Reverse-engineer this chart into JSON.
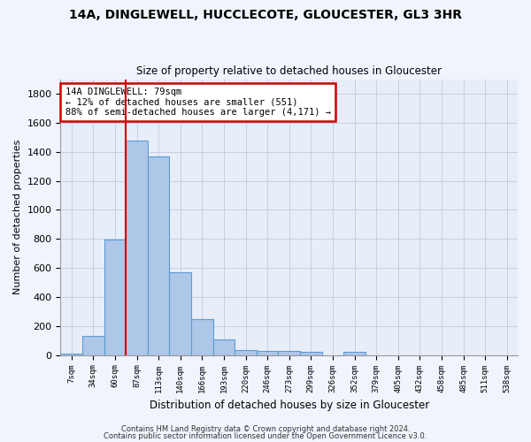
{
  "title1": "14A, DINGLEWELL, HUCCLECOTE, GLOUCESTER, GL3 3HR",
  "title2": "Size of property relative to detached houses in Gloucester",
  "xlabel": "Distribution of detached houses by size in Gloucester",
  "ylabel": "Number of detached properties",
  "categories": [
    "7sqm",
    "34sqm",
    "60sqm",
    "87sqm",
    "113sqm",
    "140sqm",
    "166sqm",
    "193sqm",
    "220sqm",
    "246sqm",
    "273sqm",
    "299sqm",
    "326sqm",
    "352sqm",
    "379sqm",
    "405sqm",
    "432sqm",
    "458sqm",
    "485sqm",
    "511sqm",
    "538sqm"
  ],
  "bar_values": [
    10,
    130,
    795,
    1475,
    1370,
    570,
    250,
    110,
    35,
    30,
    30,
    20,
    0,
    20,
    0,
    0,
    0,
    0,
    0,
    0,
    0
  ],
  "bar_color": "#aec6e8",
  "bar_edge_color": "#5b9bd5",
  "annotation_text": "14A DINGLEWELL: 79sqm\n← 12% of detached houses are smaller (551)\n88% of semi-detached houses are larger (4,171) →",
  "annotation_box_color": "#ffffff",
  "annotation_box_edge_color": "#cc0000",
  "vline_color": "#cc0000",
  "vline_x": 2.5,
  "ylim": [
    0,
    1900
  ],
  "yticks": [
    0,
    200,
    400,
    600,
    800,
    1000,
    1200,
    1400,
    1600,
    1800
  ],
  "grid_color": "#c8cfe0",
  "background_color": "#e8eef8",
  "fig_background_color": "#f0f4fc",
  "footer1": "Contains HM Land Registry data © Crown copyright and database right 2024.",
  "footer2": "Contains public sector information licensed under the Open Government Licence v3.0."
}
